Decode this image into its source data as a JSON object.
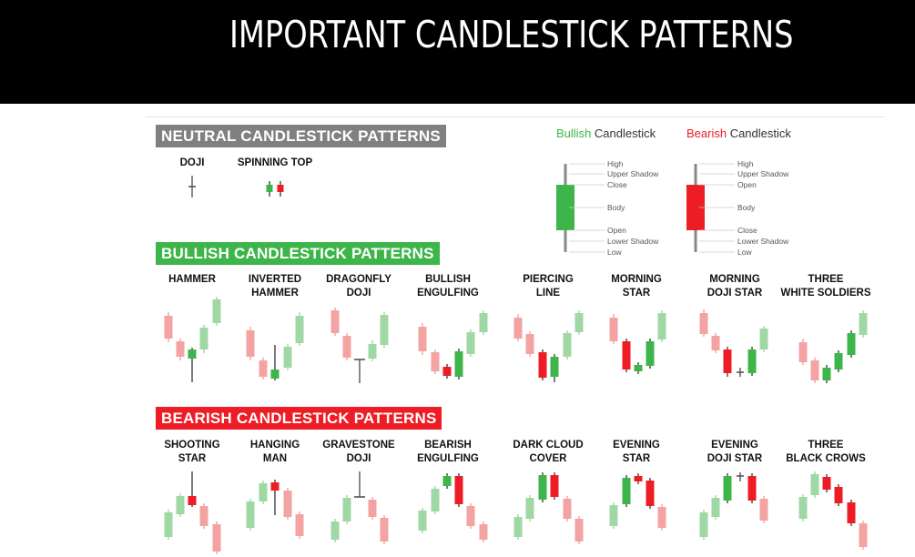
{
  "header": {
    "title": "IMPORTANT CANDLESTICK PATTERNS"
  },
  "colors": {
    "neutral_bar": "#808080",
    "bullish_bar": "#3db54a",
    "bearish_bar": "#ee1c24",
    "green": "#3db54a",
    "red": "#ee1c24",
    "light_green": "#9fd8a4",
    "light_red": "#f4a3a3"
  },
  "legend": {
    "bullish": {
      "word": "Bullish",
      "suffix": " Candlestick",
      "labels": [
        "High",
        "Upper Shadow",
        "Close",
        "Body",
        "Open",
        "Lower Shadow",
        "Low"
      ]
    },
    "bearish": {
      "word": "Bearish",
      "suffix": " Candlestick",
      "labels": [
        "High",
        "Upper Shadow",
        "Open",
        "Body",
        "Close",
        "Lower Shadow",
        "Low"
      ]
    }
  },
  "sections": {
    "neutral": {
      "title": "NEUTRAL CANDLESTICK PATTERNS",
      "patterns": [
        {
          "label": "DOJI",
          "candles": [
            {
              "c": "gray",
              "h": 100,
              "o": 101,
              "cl": 100,
              "l": 92
            }
          ]
        },
        {
          "label": "SPINNING TOP",
          "candles": [
            {
              "c": "green"
            },
            {
              "c": "red"
            }
          ]
        }
      ]
    },
    "bullish": {
      "title": "BULLISH CANDLESTICK PATTERNS",
      "patterns": [
        {
          "label": "HAMMER"
        },
        {
          "label": "INVERTED\nHAMMER"
        },
        {
          "label": "DRAGONFLY\nDOJI"
        },
        {
          "label": "BULLISH\nENGULFING"
        },
        {
          "label": "PIERCING\nLINE"
        },
        {
          "label": "MORNING\nSTAR"
        },
        {
          "label": "MORNING\nDOJI STAR"
        },
        {
          "label": "THREE\nWHITE SOLDIERS"
        }
      ]
    },
    "bearish": {
      "title": "BEARISH CANDLESTICK PATTERNS",
      "patterns": [
        {
          "label": "SHOOTING\nSTAR"
        },
        {
          "label": "HANGING\nMAN"
        },
        {
          "label": "GRAVESTONE\nDOJI"
        },
        {
          "label": "BEARISH\nENGULFING"
        },
        {
          "label": "DARK CLOUD\nCOVER"
        },
        {
          "label": "EVENING\nSTAR"
        },
        {
          "label": "EVENING\nDOJI STAR"
        },
        {
          "label": "THREE\nBLACK CROWS"
        }
      ]
    }
  }
}
